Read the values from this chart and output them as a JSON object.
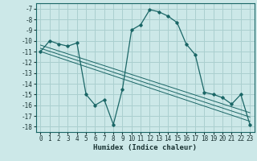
{
  "title": "",
  "xlabel": "Humidex (Indice chaleur)",
  "background_color": "#cce8e8",
  "grid_color": "#aacfcf",
  "line_color": "#1a6666",
  "x_values": [
    0,
    1,
    2,
    3,
    4,
    5,
    6,
    7,
    8,
    9,
    10,
    11,
    12,
    13,
    14,
    15,
    16,
    17,
    18,
    19,
    20,
    21,
    22,
    23
  ],
  "y_main": [
    -11.0,
    -10.0,
    -10.3,
    -10.5,
    -10.2,
    -15.0,
    -16.0,
    -15.5,
    -17.8,
    -14.5,
    -9.0,
    -8.5,
    -7.1,
    -7.3,
    -7.7,
    -8.3,
    -10.3,
    -11.3,
    -14.8,
    -15.0,
    -15.3,
    -15.9,
    -15.0,
    -17.8
  ],
  "trend_lines": [
    [
      0,
      -11.0,
      23,
      -17.5
    ],
    [
      0,
      -10.7,
      23,
      -17.1
    ],
    [
      0,
      -10.4,
      23,
      -16.7
    ]
  ],
  "ylim": [
    -18.5,
    -6.5
  ],
  "xlim": [
    -0.5,
    23.5
  ],
  "yticks": [
    -7,
    -8,
    -9,
    -10,
    -11,
    -12,
    -13,
    -14,
    -15,
    -16,
    -17,
    -18
  ],
  "xticks": [
    0,
    1,
    2,
    3,
    4,
    5,
    6,
    7,
    8,
    9,
    10,
    11,
    12,
    13,
    14,
    15,
    16,
    17,
    18,
    19,
    20,
    21,
    22,
    23
  ]
}
